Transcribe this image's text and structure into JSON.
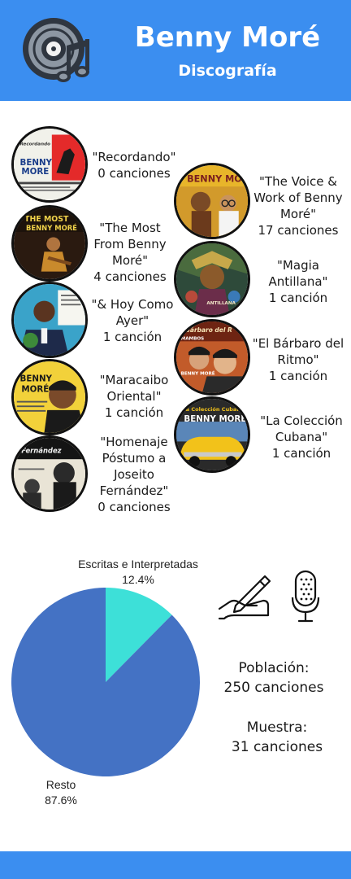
{
  "header": {
    "title": "Benny Moré",
    "subtitle": "Discografía",
    "logo_icon": "vinyl-record-music-note-icon",
    "color": "#3b8ef0"
  },
  "albums": [
    {
      "name": "\"Recordando\"",
      "count": "0 canciones",
      "cover_text": [
        "Recordando",
        "BENNY",
        "MORE"
      ]
    },
    {
      "name": "\"The Voice & Work of Benny Moré\"",
      "count": "17 canciones",
      "cover_text": [
        "BENNY MORÉ"
      ]
    },
    {
      "name": "\"The Most From Benny Moré\"",
      "count": "4 canciones",
      "cover_text": [
        "THE MOST",
        "BENNY MORÉ"
      ]
    },
    {
      "name": "\"Magia Antillana\"",
      "count": "1 canción",
      "cover_text": [
        "ANTILLANA"
      ]
    },
    {
      "name": "\"& Hoy Como Ayer\"",
      "count": "1 canción",
      "cover_text": []
    },
    {
      "name": "\"El Bárbaro del Ritmo\"",
      "count": "1 canción",
      "cover_text": [
        "Bárbaro del R",
        "MAMBOS",
        "BENNY MORÉ"
      ]
    },
    {
      "name": "\"Maracaibo Oriental\"",
      "count": "1 canción",
      "cover_text": [
        "BENNY",
        "MORÉ"
      ]
    },
    {
      "name": "\"La Colección Cubana\"",
      "count": "1 canción",
      "cover_text": [
        "La Colección Cubana",
        "BENNY MORÉ"
      ]
    },
    {
      "name": "\"Homenaje Póstumo a Joseito Fernández\"",
      "count": "0 canciones",
      "cover_text": [
        "Fernández"
      ]
    }
  ],
  "chart_data": {
    "type": "pie",
    "slices": [
      {
        "label": "Escritas e Interpretadas",
        "percent_label": "12.4%",
        "value": 12.4,
        "color": "#3de0d8"
      },
      {
        "label": "Resto",
        "percent_label": "87.6%",
        "value": 87.6,
        "color": "#4472c4"
      }
    ]
  },
  "icons": [
    "hand-writing-icon",
    "microphone-icon"
  ],
  "stats": {
    "population_label": "Población:",
    "population_value": "250 canciones",
    "sample_label": "Muestra:",
    "sample_value": "31 canciones"
  }
}
